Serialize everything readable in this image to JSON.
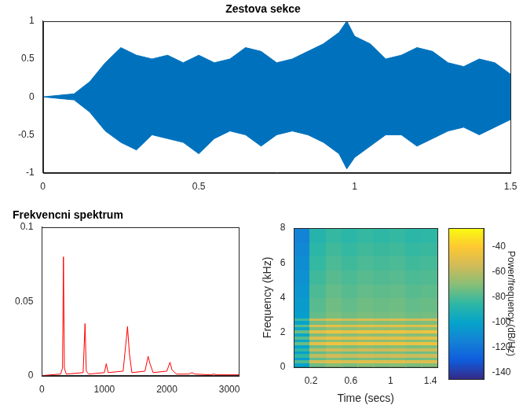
{
  "chart_data": [
    {
      "type": "area",
      "title": "Zestova sekce",
      "color": "#0072bd",
      "grid": false,
      "x": [
        0,
        0.05,
        0.1,
        0.15,
        0.2,
        0.25,
        0.3,
        0.35,
        0.4,
        0.45,
        0.5,
        0.55,
        0.6,
        0.65,
        0.7,
        0.75,
        0.8,
        0.85,
        0.9,
        0.95,
        0.975,
        1.0,
        1.05,
        1.1,
        1.15,
        1.2,
        1.25,
        1.3,
        1.35,
        1.4,
        1.45,
        1.5
      ],
      "envelope": {
        "upper": [
          0,
          0.02,
          0.04,
          0.2,
          0.45,
          0.65,
          0.55,
          0.5,
          0.55,
          0.45,
          0.55,
          0.45,
          0.5,
          0.65,
          0.6,
          0.45,
          0.5,
          0.6,
          0.7,
          0.85,
          1.0,
          0.8,
          0.7,
          0.5,
          0.55,
          0.65,
          0.6,
          0.45,
          0.4,
          0.5,
          0.45,
          0.3
        ],
        "lower": [
          0,
          -0.02,
          -0.04,
          -0.2,
          -0.45,
          -0.6,
          -0.7,
          -0.5,
          -0.55,
          -0.6,
          -0.75,
          -0.55,
          -0.45,
          -0.5,
          -0.65,
          -0.5,
          -0.45,
          -0.5,
          -0.6,
          -0.75,
          -0.95,
          -0.8,
          -0.65,
          -0.5,
          -0.5,
          -0.65,
          -0.55,
          -0.45,
          -0.4,
          -0.5,
          -0.4,
          -0.3
        ]
      },
      "xlim": [
        0,
        1.5
      ],
      "xticks": [
        0,
        0.5,
        1,
        1.5
      ],
      "ylim": [
        -1,
        1
      ],
      "yticks": [
        -1,
        -0.5,
        0,
        0.5,
        1
      ]
    },
    {
      "type": "line",
      "title": "Frekvencni spektrum",
      "color": "#ff0000",
      "grid": false,
      "x": [
        0,
        300,
        330,
        345,
        360,
        390,
        660,
        690,
        710,
        750,
        1000,
        1030,
        1060,
        1300,
        1340,
        1370,
        1400,
        1440,
        1650,
        1700,
        1730,
        1780,
        2000,
        2050,
        2080,
        2150,
        2350,
        2400,
        2450,
        2700,
        2750,
        2800,
        3150
      ],
      "values": [
        0,
        0.001,
        0.005,
        0.08,
        0.005,
        0.001,
        0.002,
        0.035,
        0.003,
        0.001,
        0.002,
        0.008,
        0.002,
        0.003,
        0.02,
        0.033,
        0.015,
        0.002,
        0.003,
        0.013,
        0.008,
        0.002,
        0.003,
        0.009,
        0.004,
        0.001,
        0.001,
        0.002,
        0.001,
        0.0005,
        0.001,
        0.0005,
        0.0005
      ],
      "xlim": [
        0,
        3150
      ],
      "xticks": [
        0,
        1000,
        2000,
        3000
      ],
      "ylim": [
        0,
        0.1
      ],
      "yticks": [
        0,
        0.05,
        0.1
      ]
    },
    {
      "type": "heatmap",
      "x_label": "Time (secs)",
      "y_label": "Frequency (kHz)",
      "grid": false,
      "time_edges": [
        0.03,
        0.19,
        0.35,
        0.51,
        0.67,
        0.83,
        0.99,
        1.15,
        1.31,
        1.47
      ],
      "frequency_edges": [
        0,
        0.25,
        0.45,
        0.6,
        0.8,
        0.95,
        1.15,
        1.3,
        1.5,
        1.65,
        1.8,
        2.0,
        2.15,
        2.35,
        2.5,
        2.7,
        2.85,
        3.2,
        4.0,
        4.8,
        5.6,
        6.4,
        7.2,
        8.0
      ],
      "cells": [
        [
          -100,
          -74,
          -70,
          -72,
          -70,
          -71,
          -70,
          -72,
          -71
        ],
        [
          -80,
          -54,
          -50,
          -52,
          -50,
          -51,
          -50,
          -52,
          -51
        ],
        [
          -102,
          -76,
          -72,
          -74,
          -72,
          -73,
          -72,
          -74,
          -73
        ],
        [
          -85,
          -59,
          -55,
          -57,
          -55,
          -56,
          -55,
          -57,
          -56
        ],
        [
          -102,
          -76,
          -72,
          -74,
          -72,
          -73,
          -72,
          -74,
          -73
        ],
        [
          -85,
          -59,
          -55,
          -57,
          -55,
          -56,
          -55,
          -57,
          -56
        ],
        [
          -100,
          -74,
          -70,
          -72,
          -70,
          -71,
          -70,
          -72,
          -71
        ],
        [
          -75,
          -49,
          -45,
          -47,
          -45,
          -46,
          -45,
          -47,
          -46
        ],
        [
          -98,
          -72,
          -68,
          -70,
          -68,
          -69,
          -68,
          -70,
          -69
        ],
        [
          -78,
          -52,
          -48,
          -50,
          -48,
          -49,
          -48,
          -50,
          -49
        ],
        [
          -98,
          -72,
          -68,
          -70,
          -68,
          -69,
          -68,
          -70,
          -69
        ],
        [
          -75,
          -49,
          -45,
          -47,
          -45,
          -46,
          -45,
          -47,
          -46
        ],
        [
          -98,
          -72,
          -68,
          -70,
          -68,
          -69,
          -68,
          -70,
          -69
        ],
        [
          -78,
          -52,
          -48,
          -50,
          -48,
          -49,
          -48,
          -50,
          -49
        ],
        [
          -100,
          -74,
          -70,
          -72,
          -70,
          -71,
          -70,
          -72,
          -71
        ],
        [
          -82,
          -56,
          -52,
          -54,
          -52,
          -53,
          -52,
          -54,
          -53
        ],
        [
          -102,
          -76,
          -72,
          -74,
          -72,
          -73,
          -72,
          -74,
          -73
        ],
        [
          -104,
          -78,
          -74,
          -76,
          -74,
          -75,
          -74,
          -76,
          -75
        ],
        [
          -106,
          -80,
          -76,
          -78,
          -76,
          -77,
          -76,
          -78,
          -77
        ],
        [
          -108,
          -82,
          -78,
          -80,
          -78,
          -79,
          -78,
          -80,
          -79
        ],
        [
          -110,
          -84,
          -80,
          -82,
          -80,
          -81,
          -80,
          -82,
          -81
        ],
        [
          -112,
          -86,
          -82,
          -84,
          -82,
          -83,
          -82,
          -84,
          -83
        ],
        [
          -114,
          -88,
          -84,
          -86,
          -84,
          -85,
          -84,
          -86,
          -85
        ]
      ],
      "xlim": [
        0.03,
        1.47
      ],
      "xticks": [
        0.2,
        0.6,
        1,
        1.4
      ],
      "ylim": [
        0,
        8
      ],
      "yticks": [
        0,
        2,
        4,
        6,
        8
      ],
      "colorbar": {
        "label": "Power/frequency (dB/Hz)",
        "range": [
          -145,
          -25
        ],
        "ticks": [
          -40,
          -60,
          -80,
          -100,
          -120,
          -140
        ]
      }
    }
  ]
}
